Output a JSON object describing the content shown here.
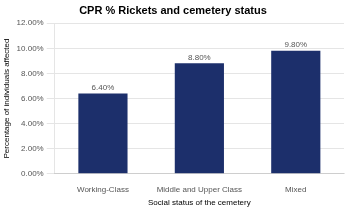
{
  "chart_data": {
    "type": "bar",
    "title": "CPR % Rickets and cemetery status",
    "categories": [
      "Working-Class",
      "Middle and Upper Class",
      "Mixed"
    ],
    "values": [
      6.4,
      8.8,
      9.8
    ],
    "value_labels": [
      "6.40%",
      "8.80%",
      "9.80%"
    ],
    "data_labels": true,
    "color": "#1C2F6B",
    "xlabel": "Social status of the cemetery",
    "ylabel": "Percentage of individuals affected",
    "ylim": [
      0,
      12.0
    ],
    "yticks": [
      {
        "value": 0,
        "label": "0.00%"
      },
      {
        "value": 2.0,
        "label": "2.00%"
      },
      {
        "value": 4.0,
        "label": "4.00%"
      },
      {
        "value": 6.0,
        "label": "6.00%"
      },
      {
        "value": 8.0,
        "label": "8.00%"
      },
      {
        "value": 10.0,
        "label": "10.00%"
      },
      {
        "value": 12.0,
        "label": "12.00%"
      }
    ],
    "grid": true
  }
}
